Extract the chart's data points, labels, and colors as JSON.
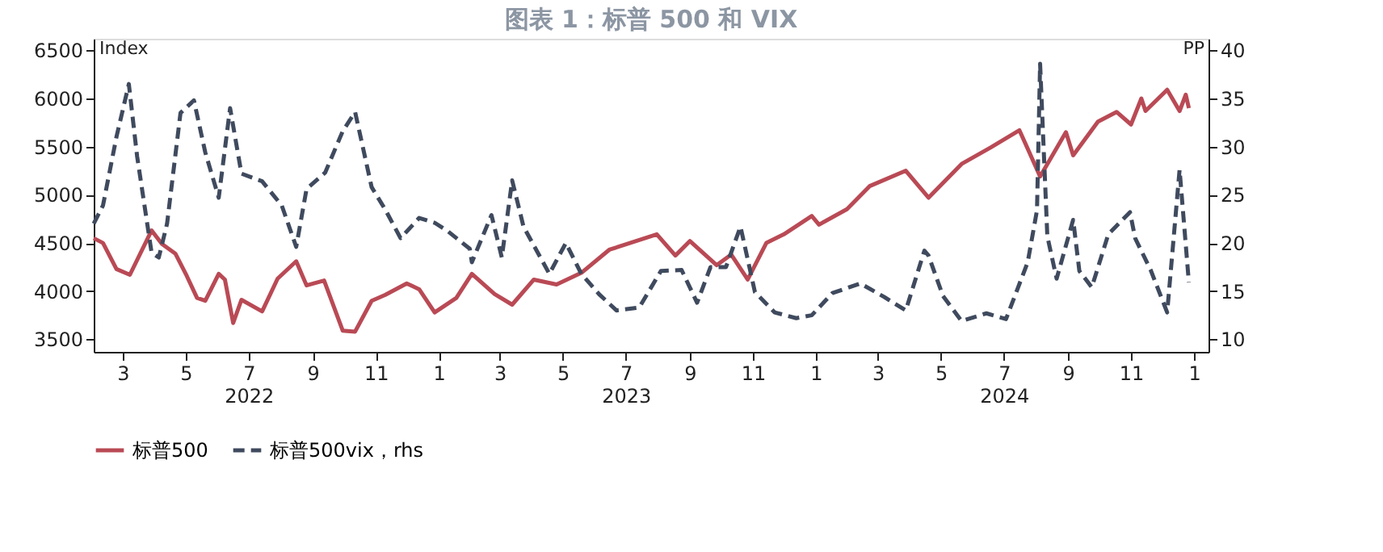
{
  "chart_data": {
    "type": "line",
    "title": "图表 1：标普 500 和 VIX",
    "ylabel": "Index",
    "y2label": "PP",
    "xlim": [
      "2022-02-01",
      "2025-01-15"
    ],
    "xticks": [
      {
        "value": "2022-03-01",
        "label": "3"
      },
      {
        "value": "2022-05-01",
        "label": "5"
      },
      {
        "value": "2022-07-01",
        "label": "7\n2022"
      },
      {
        "value": "2022-09-01",
        "label": "9"
      },
      {
        "value": "2022-11-01",
        "label": "11"
      },
      {
        "value": "2023-01-01",
        "label": "1"
      },
      {
        "value": "2023-03-01",
        "label": "3"
      },
      {
        "value": "2023-05-01",
        "label": "5"
      },
      {
        "value": "2023-07-01",
        "label": "7\n2023"
      },
      {
        "value": "2023-09-01",
        "label": "9"
      },
      {
        "value": "2023-11-01",
        "label": "11"
      },
      {
        "value": "2024-01-01",
        "label": "1"
      },
      {
        "value": "2024-03-01",
        "label": "3"
      },
      {
        "value": "2024-05-01",
        "label": "5"
      },
      {
        "value": "2024-07-01",
        "label": "7\n2024"
      },
      {
        "value": "2024-09-01",
        "label": "9"
      },
      {
        "value": "2024-11-01",
        "label": "11"
      },
      {
        "value": "2025-01-01",
        "label": "1"
      }
    ],
    "ylim": [
      3370,
      6620
    ],
    "yticks": [
      3500,
      4000,
      4500,
      5000,
      5500,
      6000,
      6500
    ],
    "y2lim": [
      8.7,
      41.2
    ],
    "y2ticks": [
      10,
      15,
      20,
      25,
      30,
      35,
      40
    ],
    "grid": false,
    "legend": "bottom",
    "marker": "none",
    "series": [
      {
        "name": "标普500",
        "color": "#b94a55",
        "line_style": "solid",
        "x": [
          "2022-02-01",
          "2022-02-10",
          "2022-02-23",
          "2022-03-08",
          "2022-03-29",
          "2022-04-08",
          "2022-04-21",
          "2022-05-02",
          "2022-05-12",
          "2022-05-20",
          "2022-06-02",
          "2022-06-08",
          "2022-06-16",
          "2022-06-24",
          "2022-07-14",
          "2022-07-29",
          "2022-08-16",
          "2022-08-26",
          "2022-09-12",
          "2022-09-30",
          "2022-10-12",
          "2022-10-28",
          "2022-11-10",
          "2022-12-01",
          "2022-12-13",
          "2022-12-28",
          "2023-01-18",
          "2023-02-02",
          "2023-02-24",
          "2023-03-13",
          "2023-04-03",
          "2023-04-25",
          "2023-05-19",
          "2023-06-15",
          "2023-07-31",
          "2023-08-18",
          "2023-09-01",
          "2023-09-27",
          "2023-10-11",
          "2023-10-27",
          "2023-11-14",
          "2023-12-01",
          "2023-12-28",
          "2024-01-04",
          "2024-01-31",
          "2024-02-22",
          "2024-03-28",
          "2024-04-19",
          "2024-05-21",
          "2024-06-18",
          "2024-07-16",
          "2024-08-05",
          "2024-08-30",
          "2024-09-06",
          "2024-09-30",
          "2024-10-18",
          "2024-11-01",
          "2024-11-11",
          "2024-11-15",
          "2024-12-06",
          "2024-12-18",
          "2024-12-24",
          "2024-12-27"
        ],
        "values": [
          4550,
          4500,
          4230,
          4170,
          4630,
          4490,
          4390,
          4160,
          3930,
          3900,
          4180,
          4120,
          3670,
          3910,
          3790,
          4130,
          4310,
          4060,
          4110,
          3590,
          3580,
          3900,
          3960,
          4080,
          4020,
          3780,
          3930,
          4180,
          3970,
          3860,
          4120,
          4070,
          4190,
          4430,
          4590,
          4370,
          4520,
          4270,
          4380,
          4120,
          4500,
          4590,
          4780,
          4690,
          4850,
          5090,
          5250,
          4970,
          5320,
          5490,
          5670,
          5190,
          5650,
          5410,
          5760,
          5860,
          5730,
          6000,
          5870,
          6090,
          5870,
          6040,
          5900
        ]
      },
      {
        "name": "标普500vix，rhs",
        "color": "#3f4a5e",
        "line_style": "dashed",
        "axis": "y2",
        "x": [
          "2022-02-01",
          "2022-02-10",
          "2022-02-23",
          "2022-03-07",
          "2022-03-15",
          "2022-03-29",
          "2022-04-05",
          "2022-04-13",
          "2022-04-26",
          "2022-05-09",
          "2022-05-20",
          "2022-06-02",
          "2022-06-13",
          "2022-06-24",
          "2022-07-14",
          "2022-08-02",
          "2022-08-16",
          "2022-08-26",
          "2022-09-13",
          "2022-09-30",
          "2022-10-12",
          "2022-10-28",
          "2022-11-10",
          "2022-11-25",
          "2022-12-13",
          "2022-12-28",
          "2023-01-10",
          "2023-01-31",
          "2023-02-02",
          "2023-02-21",
          "2023-03-03",
          "2023-03-13",
          "2023-03-24",
          "2023-04-18",
          "2023-05-04",
          "2023-05-19",
          "2023-06-05",
          "2023-06-22",
          "2023-07-14",
          "2023-08-04",
          "2023-08-24",
          "2023-09-08",
          "2023-09-21",
          "2023-10-06",
          "2023-10-20",
          "2023-11-03",
          "2023-11-22",
          "2023-12-13",
          "2023-12-28",
          "2024-01-17",
          "2024-02-13",
          "2024-03-07",
          "2024-03-28",
          "2024-04-15",
          "2024-04-19",
          "2024-05-03",
          "2024-05-21",
          "2024-06-14",
          "2024-07-03",
          "2024-07-24",
          "2024-08-02",
          "2024-08-05",
          "2024-08-12",
          "2024-08-21",
          "2024-09-06",
          "2024-09-12",
          "2024-09-24",
          "2024-10-10",
          "2024-10-31",
          "2024-11-05",
          "2024-11-20",
          "2024-12-06",
          "2024-12-18",
          "2024-12-27"
        ],
        "values": [
          22,
          23.9,
          31,
          36.5,
          29,
          19,
          18.5,
          22,
          33.5,
          34.8,
          29.4,
          24.7,
          34,
          27.2,
          26.4,
          23.9,
          19.6,
          25.6,
          27.3,
          31.6,
          33.6,
          25.8,
          23.5,
          20.5,
          22.6,
          22.1,
          21.2,
          19.4,
          18,
          22.9,
          18.5,
          26.5,
          21.7,
          16.8,
          20,
          16.8,
          14.7,
          13,
          13.3,
          17.1,
          17.2,
          13.8,
          17.5,
          17.5,
          21.7,
          14.9,
          12.8,
          12.2,
          12.5,
          14.8,
          15.8,
          14.4,
          13,
          19.2,
          18.7,
          14.5,
          11.9,
          12.7,
          12.1,
          18,
          23.4,
          38.6,
          20.7,
          16.3,
          22.4,
          17.1,
          15.4,
          20.9,
          23.2,
          20.5,
          17.2,
          12.8,
          27.6,
          15.9
        ]
      }
    ]
  }
}
